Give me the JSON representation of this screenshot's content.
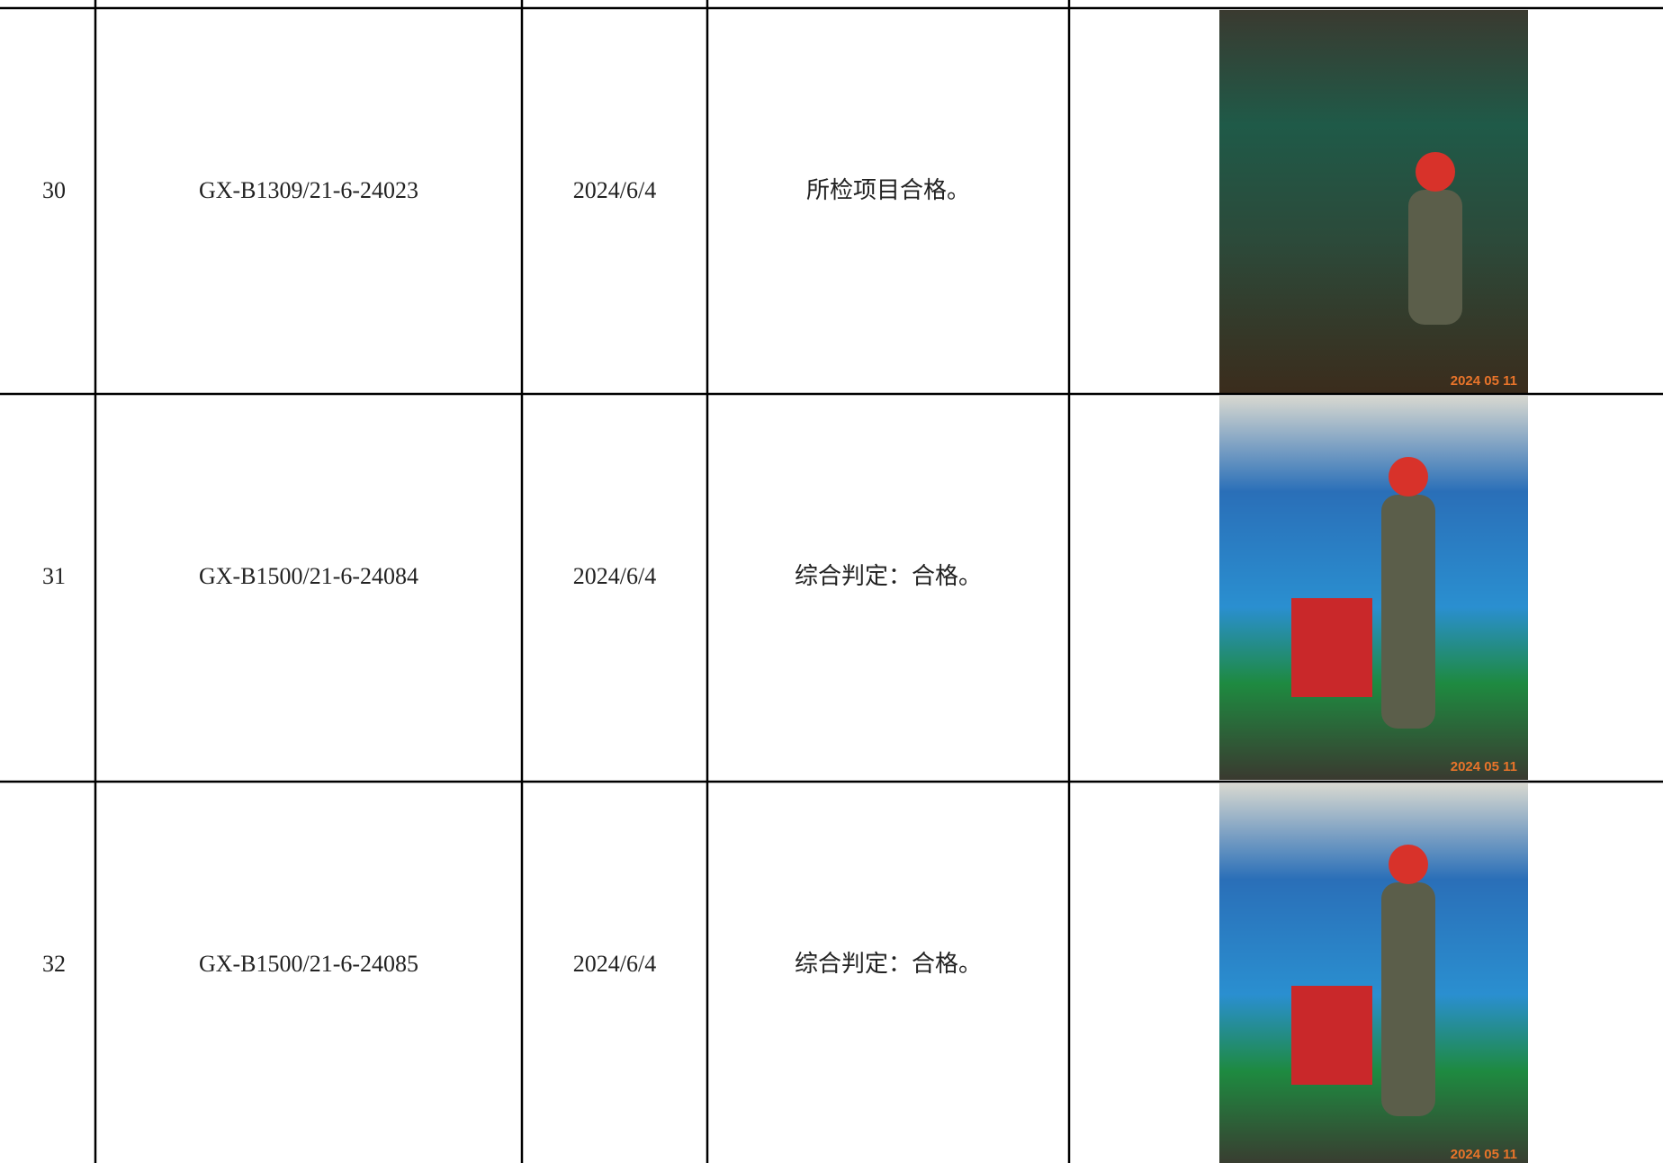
{
  "table": {
    "rows": [
      [
        "30",
        "GX-B1309/21-6-24023",
        "2024/6/4",
        "所检项目合格。"
      ],
      [
        "31",
        "GX-B1500/21-6-24084",
        "2024/6/4",
        "综合判定：合格。"
      ],
      [
        "32",
        "GX-B1500/21-6-24085",
        "2024/6/4",
        "综合判定：合格。"
      ]
    ],
    "photo_stamps": [
      "2024 05 11",
      "2024 05 11",
      "2024 05 11"
    ]
  }
}
